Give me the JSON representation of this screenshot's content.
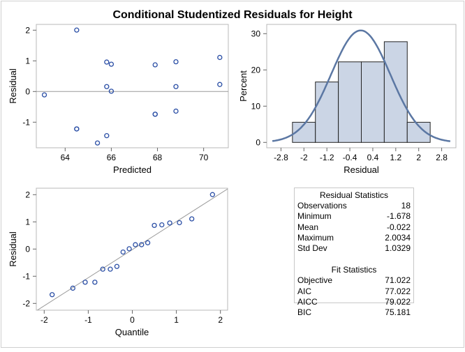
{
  "title": "Conditional Studentized Residuals for Height",
  "chart_data": [
    {
      "type": "scatter",
      "xlabel": "Predicted",
      "ylabel": "Residual",
      "xticks": [
        64,
        66,
        68,
        70
      ],
      "yticks": [
        -1,
        0,
        1,
        2
      ],
      "xlim": [
        62.6,
        71.0
      ],
      "ylim": [
        -1.8,
        2.2
      ],
      "reference_line_y": 0,
      "points": [
        [
          63.1,
          -0.11
        ],
        [
          64.5,
          2.0034
        ],
        [
          64.5,
          -1.22
        ],
        [
          64.5,
          -1.22
        ],
        [
          65.4,
          -1.678
        ],
        [
          65.8,
          0.96
        ],
        [
          65.8,
          0.16
        ],
        [
          65.8,
          -1.44
        ],
        [
          66.0,
          0.89
        ],
        [
          66.0,
          0.01
        ],
        [
          67.9,
          0.87
        ],
        [
          67.9,
          -0.74
        ],
        [
          67.9,
          -0.74
        ],
        [
          68.8,
          0.97
        ],
        [
          68.8,
          0.16
        ],
        [
          68.8,
          -0.64
        ],
        [
          70.7,
          1.11
        ],
        [
          70.7,
          0.23
        ]
      ],
      "marker_color": "#2a4ea5"
    },
    {
      "type": "bar",
      "subtype": "histogram",
      "xlabel": "Residual",
      "ylabel": "Percent",
      "xticks": [
        "-2.8",
        "-2",
        "-1.2",
        "-0.4",
        "0.4",
        "1.2",
        "2",
        "2.8"
      ],
      "yticks": [
        0,
        10,
        20,
        30
      ],
      "bin_centers": [
        -2,
        -1.2,
        -0.4,
        0.4,
        1.2,
        2
      ],
      "bin_width": 0.8,
      "values": [
        5.56,
        16.67,
        22.22,
        22.22,
        27.78,
        5.56
      ],
      "normal_curve": {
        "mean": -0.022,
        "sd": 1.0329
      },
      "bar_color": "#cbd5e5",
      "curve_color": "#5b77a3"
    },
    {
      "type": "scatter",
      "subtype": "qq",
      "xlabel": "Quantile",
      "ylabel": "Residual",
      "xticks": [
        -2,
        -1,
        0,
        1,
        2
      ],
      "yticks": [
        -2,
        -1,
        0,
        1,
        2
      ],
      "quantiles": [
        -1.82,
        -1.35,
        -1.07,
        -0.85,
        -0.67,
        -0.5,
        -0.35,
        -0.21,
        -0.07,
        0.07,
        0.21,
        0.35,
        0.5,
        0.67,
        0.85,
        1.07,
        1.35,
        1.82
      ],
      "residuals": [
        -1.678,
        -1.44,
        -1.22,
        -1.22,
        -0.74,
        -0.74,
        -0.64,
        -0.11,
        0.01,
        0.16,
        0.16,
        0.23,
        0.87,
        0.89,
        0.96,
        0.97,
        1.11,
        2.0034
      ],
      "reference_line": {
        "intercept": -0.022,
        "slope": 1.0329
      }
    }
  ],
  "stats": {
    "residual_title": "Residual Statistics",
    "residual_rows": [
      {
        "label": "Observations",
        "value": "18"
      },
      {
        "label": "Minimum",
        "value": "-1.678"
      },
      {
        "label": "Mean",
        "value": "-0.022"
      },
      {
        "label": "Maximum",
        "value": "2.0034"
      },
      {
        "label": "Std Dev",
        "value": "1.0329"
      }
    ],
    "fit_title": "Fit Statistics",
    "fit_rows": [
      {
        "label": "Objective",
        "value": "71.022"
      },
      {
        "label": "AIC",
        "value": "77.022"
      },
      {
        "label": "AICC",
        "value": "79.022"
      },
      {
        "label": "BIC",
        "value": "75.181"
      }
    ]
  }
}
